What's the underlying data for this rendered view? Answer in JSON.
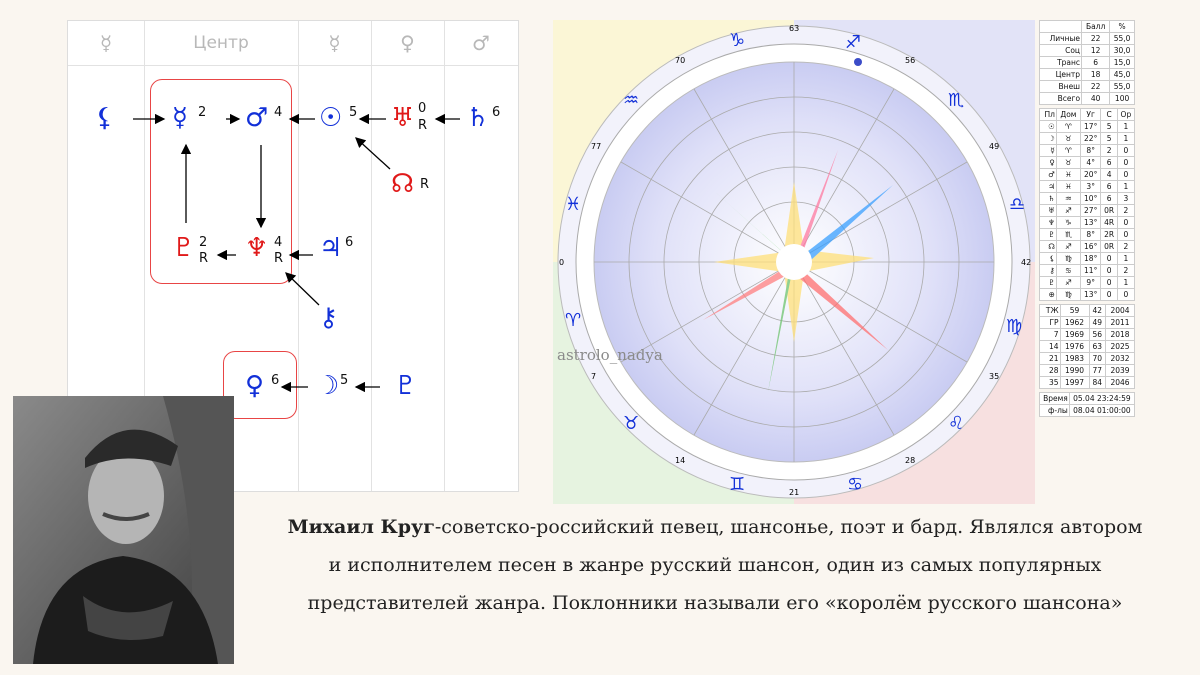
{
  "dispositors": {
    "headers": [
      "☿",
      "Центр",
      "☿",
      "♀",
      "♂"
    ],
    "center_label": "Центр",
    "nodes": {
      "mercury": {
        "glyph": "☿",
        "num": "2"
      },
      "mars": {
        "glyph": "♂",
        "num": "4"
      },
      "sun": {
        "glyph": "☉",
        "num": "5"
      },
      "uranus": {
        "glyph": "♅",
        "num": "0",
        "flag": "R"
      },
      "saturn": {
        "glyph": "♄",
        "num": "6"
      },
      "node": {
        "glyph": "☊",
        "flag": "R"
      },
      "lilith": {
        "glyph": "⚸"
      },
      "pluto": {
        "glyph": "♇",
        "num": "2",
        "flag": "R"
      },
      "neptune": {
        "glyph": "♆",
        "num": "4",
        "flag": "R"
      },
      "jupiter": {
        "glyph": "♃",
        "num": "6"
      },
      "chiron": {
        "glyph": "⚷"
      },
      "venus": {
        "glyph": "♀",
        "num": "6"
      },
      "moon": {
        "glyph": "☽",
        "num": "5"
      },
      "proserpina": {
        "glyph": "♇"
      }
    }
  },
  "chart": {
    "watermark": "astrolo_nadya",
    "degree_marks": [
      "63",
      "56",
      "49",
      "42",
      "35",
      "28",
      "21",
      "14",
      "7",
      "0",
      "77",
      "70"
    ],
    "signs": [
      "♑",
      "♐",
      "♏",
      "♎",
      "♍",
      "♌",
      "♋",
      "♊",
      "♉",
      "♈",
      "♓",
      "♒"
    ]
  },
  "scores": {
    "header": [
      "",
      "Балл",
      "%"
    ],
    "rows": [
      [
        "Личные",
        "22",
        "55,0"
      ],
      [
        "Соц",
        "12",
        "30,0"
      ],
      [
        "Транс",
        "6",
        "15,0"
      ],
      [
        "Центр",
        "18",
        "45,0"
      ],
      [
        "Внеш",
        "22",
        "55,0"
      ],
      [
        "Всего",
        "40",
        "100"
      ]
    ]
  },
  "planets": {
    "header": [
      "Пл",
      "Дом",
      "Уг",
      "С",
      "Ор"
    ],
    "rows": [
      [
        "☉",
        "♈",
        "17°",
        "5",
        "1"
      ],
      [
        "☽",
        "♉",
        "22°",
        "5",
        "1"
      ],
      [
        "☿",
        "♈",
        "8°",
        "2",
        "0"
      ],
      [
        "♀",
        "♉",
        "4°",
        "6",
        "0"
      ],
      [
        "♂",
        "♓",
        "20°",
        "4",
        "0"
      ],
      [
        "♃",
        "♓",
        "3°",
        "6",
        "1"
      ],
      [
        "♄",
        "♒",
        "10°",
        "6",
        "3"
      ],
      [
        "♅",
        "♐",
        "27°",
        "0R",
        "2"
      ],
      [
        "♆",
        "♑",
        "13°",
        "4R",
        "0"
      ],
      [
        "♇",
        "♏",
        "8°",
        "2R",
        "0"
      ],
      [
        "☊",
        "♐",
        "16°",
        "0R",
        "2"
      ],
      [
        "⚸",
        "♍",
        "18°",
        "0",
        "1"
      ],
      [
        "⚷",
        "♋",
        "11°",
        "0",
        "2"
      ],
      [
        "♇",
        "♐",
        "9°",
        "0",
        "1"
      ],
      [
        "⊕",
        "♍",
        "13°",
        "0",
        "0"
      ]
    ]
  },
  "cycles": {
    "rows": [
      [
        "ТЖ",
        "59",
        "42",
        "2004"
      ],
      [
        "ГР",
        "1962",
        "49",
        "2011"
      ],
      [
        "7",
        "1969",
        "56",
        "2018"
      ],
      [
        "14",
        "1976",
        "63",
        "2025"
      ],
      [
        "21",
        "1983",
        "70",
        "2032"
      ],
      [
        "28",
        "1990",
        "77",
        "2039"
      ],
      [
        "35",
        "1997",
        "84",
        "2046"
      ]
    ]
  },
  "times": {
    "rows": [
      [
        "Время",
        "05.04 23:24:59"
      ],
      [
        "ф-лы",
        "08.04 01:00:00"
      ]
    ]
  },
  "bio": {
    "name": "Михаил Круг",
    "text": "-советско-российский певец, шансонье, поэт и бард. Являлся автором и исполнителем песен в жанре русский шансон, один из самых популярных представителей жанра. Поклонники называли его «королём русского шансона»"
  }
}
